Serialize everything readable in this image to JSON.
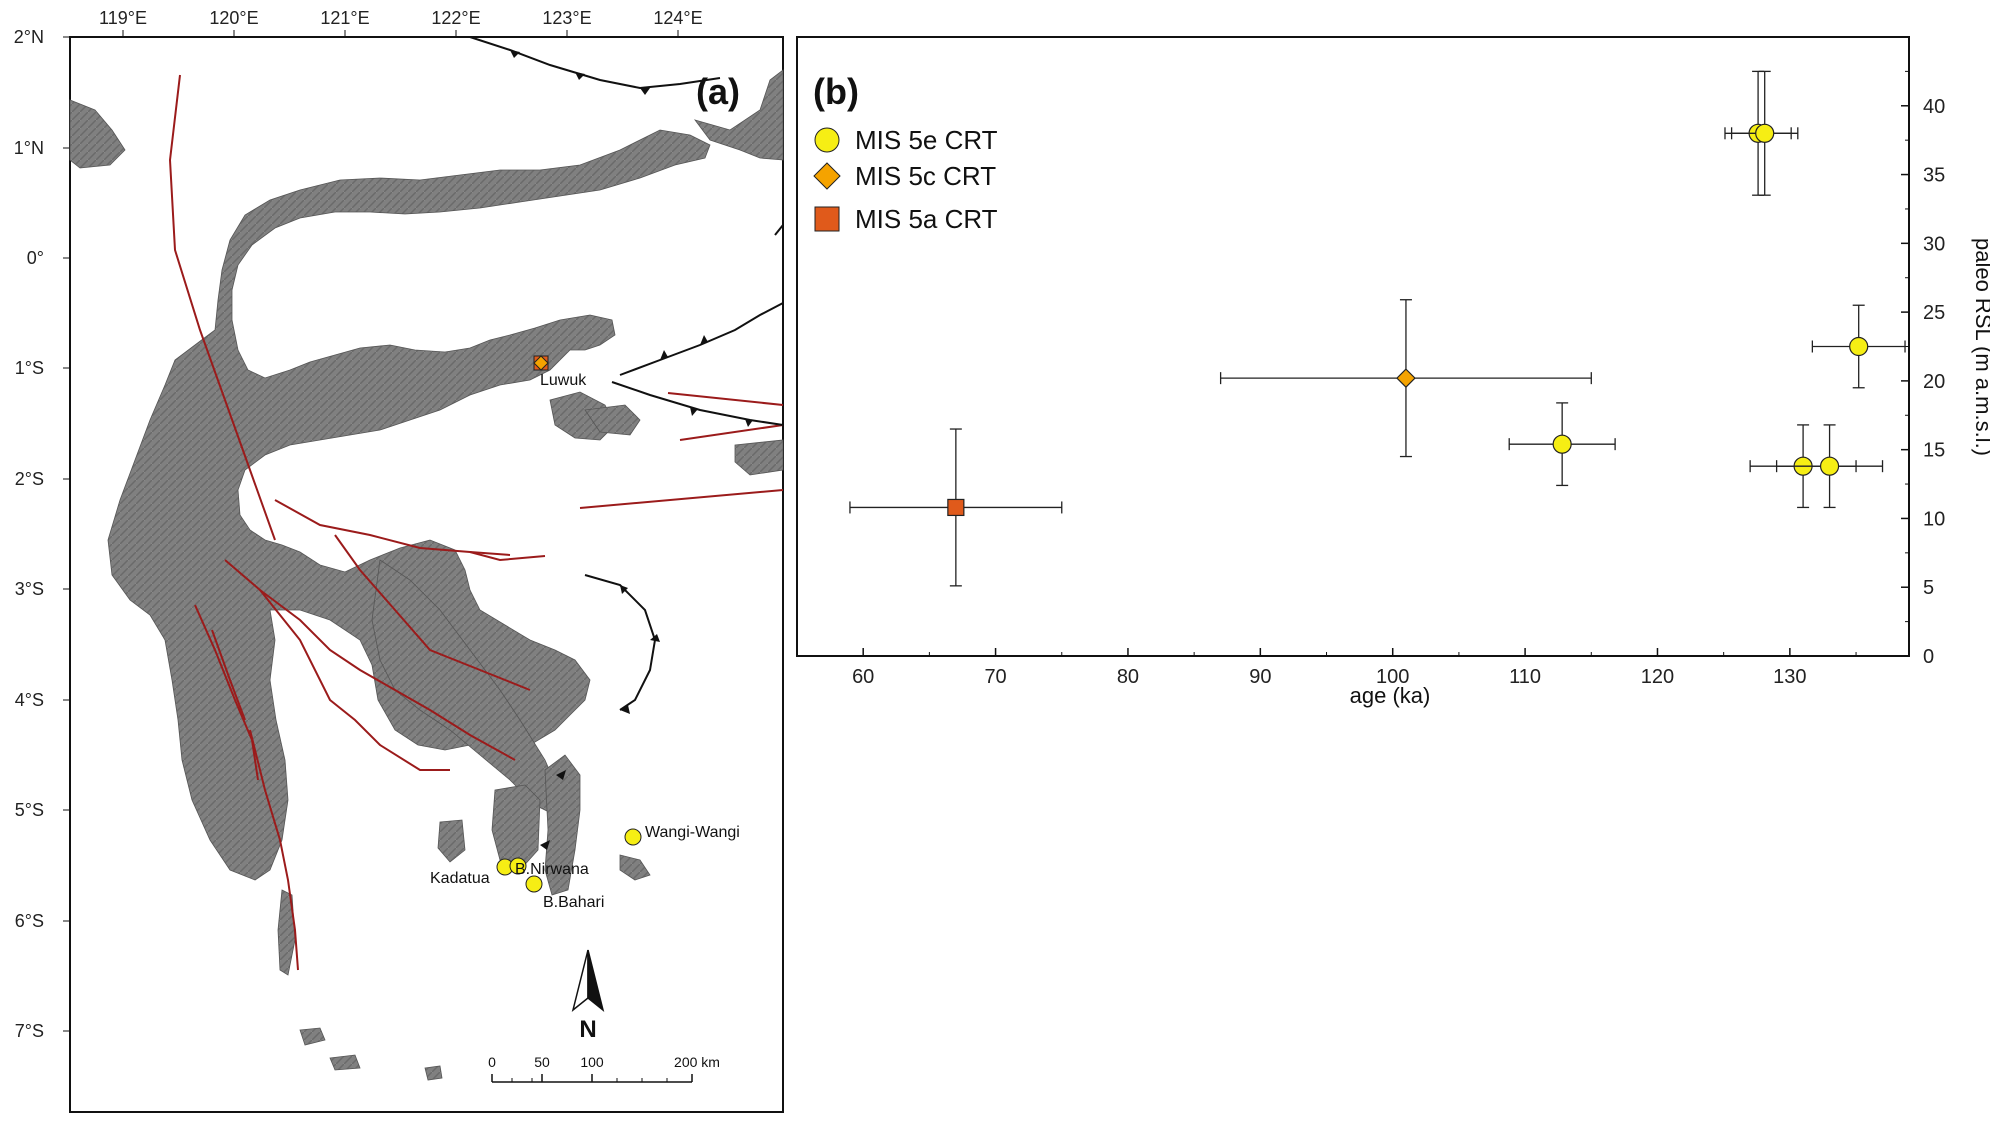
{
  "map": {
    "panel_label": "(a)",
    "lon_ticks": [
      "119°E",
      "120°E",
      "121°E",
      "122°E",
      "123°E",
      "124°E"
    ],
    "lat_ticks": [
      "2°N",
      "1°N",
      "0°",
      "1°S",
      "2°S",
      "3°S",
      "4°S",
      "5°S",
      "6°S",
      "7°S"
    ],
    "sites": [
      {
        "name": "Luwuk",
        "category": "MIS 5c / 5a"
      },
      {
        "name": "Wangi-Wangi",
        "category": "MIS 5e"
      },
      {
        "name": "Kadatua",
        "category": "MIS 5e"
      },
      {
        "name": "B.Nirwana",
        "category": "MIS 5e"
      },
      {
        "name": "B.Bahari",
        "category": "MIS 5e"
      }
    ],
    "north_label": "N",
    "scale_labels": [
      "0",
      "50",
      "100",
      "200 km"
    ],
    "colors": {
      "land": "#7f7f7f",
      "fault": "#9b1b1b",
      "trench": "#111111"
    }
  },
  "chart_data": {
    "type": "scatter",
    "panel_label": "(b)",
    "xlabel": "age (ka)",
    "ylabel": "paleo RSL (m a.m.s.l.)",
    "xlim": [
      55,
      139
    ],
    "ylim": [
      0,
      45
    ],
    "xticks": [
      60,
      70,
      80,
      90,
      100,
      110,
      120,
      130
    ],
    "yticks": [
      0,
      5,
      10,
      15,
      20,
      25,
      30,
      35,
      40
    ],
    "legend_position": "top-left",
    "series": [
      {
        "name": "MIS 5e CRT",
        "marker": "circle",
        "color": "#f6ee14",
        "points": [
          {
            "x": 127.6,
            "y": 38.0,
            "xerr": 2.5,
            "yerr": 4.5
          },
          {
            "x": 128.1,
            "y": 38.0,
            "xerr": 2.5,
            "yerr": 4.5
          },
          {
            "x": 135.2,
            "y": 22.5,
            "xerr": 3.5,
            "yerr": 3.0
          },
          {
            "x": 112.8,
            "y": 15.4,
            "xerr": 4.0,
            "yerr": 3.0
          },
          {
            "x": 131.0,
            "y": 13.8,
            "xerr": 4.0,
            "yerr": 3.0
          },
          {
            "x": 133.0,
            "y": 13.8,
            "xerr": 4.0,
            "yerr": 3.0
          }
        ]
      },
      {
        "name": "MIS 5c CRT",
        "marker": "diamond",
        "color": "#f5a300",
        "points": [
          {
            "x": 101.0,
            "y": 20.2,
            "xerr": 14.0,
            "yerr": 5.7
          }
        ]
      },
      {
        "name": "MIS 5a CRT",
        "marker": "square",
        "color": "#e05a1b",
        "points": [
          {
            "x": 67.0,
            "y": 10.8,
            "xerr": 8.0,
            "yerr": 5.7
          }
        ]
      }
    ]
  }
}
